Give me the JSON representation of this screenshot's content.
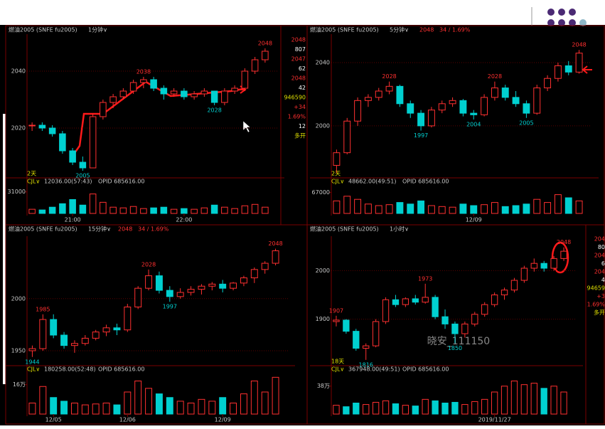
{
  "chart_data": [
    {
      "type": "candlestick",
      "title": "燃油2005 (SNFE fu2005)",
      "period": "1分钟∨",
      "days": "2天",
      "indicator": "CJL∨",
      "indicator_value": "12036.00(57:43)",
      "opid": "OPID 685616.00",
      "up_color": "#ff3030",
      "down_color": "#00d0d0",
      "ylim": [
        2003,
        2053
      ],
      "yticks": [
        2020,
        2040
      ],
      "volume_ylim": [
        0,
        45000
      ],
      "volume_yticks": [
        31000
      ],
      "xticks": [
        {
          "value": 4,
          "label": "21:00"
        },
        {
          "value": 15,
          "label": "22:00"
        }
      ],
      "candles": [
        [
          2021,
          2022,
          2019,
          2021
        ],
        [
          2021,
          2022,
          2019,
          2020
        ],
        [
          2020,
          2021,
          2017,
          2018
        ],
        [
          2018,
          2019,
          2011,
          2012
        ],
        [
          2012,
          2013,
          2007,
          2008
        ],
        [
          2008,
          2010,
          2005,
          2006
        ],
        [
          2006,
          2025,
          2006,
          2024
        ],
        [
          2024,
          2030,
          2023,
          2029
        ],
        [
          2029,
          2032,
          2027,
          2031
        ],
        [
          2031,
          2034,
          2030,
          2033
        ],
        [
          2033,
          2037,
          2032,
          2036
        ],
        [
          2036,
          2038,
          2034,
          2037
        ],
        [
          2037,
          2038,
          2033,
          2034
        ],
        [
          2034,
          2035,
          2030,
          2032
        ],
        [
          2032,
          2034,
          2031,
          2033
        ],
        [
          2033,
          2034,
          2030,
          2031
        ],
        [
          2031,
          2033,
          2030,
          2032
        ],
        [
          2032,
          2034,
          2031,
          2033
        ],
        [
          2033,
          2033,
          2028,
          2029
        ],
        [
          2029,
          2034,
          2028,
          2033
        ],
        [
          2033,
          2035,
          2032,
          2034
        ],
        [
          2034,
          2041,
          2033,
          2040
        ],
        [
          2040,
          2045,
          2039,
          2044
        ],
        [
          2044,
          2048,
          2043,
          2047
        ]
      ],
      "volume": [
        6000,
        5000,
        9000,
        14000,
        20000,
        12000,
        28000,
        16000,
        9000,
        8000,
        10000,
        7000,
        8000,
        9000,
        6000,
        7000,
        6000,
        8000,
        12000,
        9000,
        7000,
        11000,
        13000,
        9000
      ],
      "annotations": [
        {
          "index": 23,
          "value": 2048
        },
        {
          "index": 11,
          "value": 2038
        },
        {
          "index": 18,
          "value": 2028
        },
        {
          "index": 5,
          "value": 2005
        }
      ]
    },
    {
      "type": "candlestick",
      "title": "燃油2005 (SNFE fu2005)",
      "period": "5分钟∨",
      "last": "2048",
      "change": "34 / 1.69%",
      "days": "2天",
      "indicator": "CJL∨",
      "indicator_value": "48662.00(49:51)",
      "opid": "OPID 685616.00",
      "up_color": "#ff3030",
      "down_color": "#00d0d0",
      "ylim": [
        1968,
        2058
      ],
      "yticks": [
        2000,
        2040
      ],
      "volume_ylim": [
        0,
        100000
      ],
      "volume_yticks": [
        67000
      ],
      "xticks": [
        {
          "value": 13,
          "label": "12/09"
        }
      ],
      "candles": [
        [
          1975,
          1985,
          1970,
          1983
        ],
        [
          1983,
          2005,
          1982,
          2003
        ],
        [
          2003,
          2018,
          2000,
          2016
        ],
        [
          2016,
          2020,
          2012,
          2018
        ],
        [
          2018,
          2024,
          2016,
          2022
        ],
        [
          2022,
          2028,
          2020,
          2025
        ],
        [
          2025,
          2026,
          2012,
          2014
        ],
        [
          2014,
          2016,
          2005,
          2008
        ],
        [
          2008,
          2010,
          1997,
          2000
        ],
        [
          2000,
          2012,
          1999,
          2010
        ],
        [
          2010,
          2016,
          2008,
          2014
        ],
        [
          2014,
          2018,
          2012,
          2016
        ],
        [
          2016,
          2017,
          2006,
          2008
        ],
        [
          2008,
          2010,
          2004,
          2007
        ],
        [
          2007,
          2020,
          2006,
          2018
        ],
        [
          2018,
          2028,
          2016,
          2024
        ],
        [
          2024,
          2026,
          2016,
          2018
        ],
        [
          2018,
          2022,
          2012,
          2014
        ],
        [
          2014,
          2016,
          2005,
          2008
        ],
        [
          2008,
          2026,
          2007,
          2024
        ],
        [
          2024,
          2032,
          2022,
          2030
        ],
        [
          2030,
          2040,
          2028,
          2038
        ],
        [
          2038,
          2041,
          2032,
          2034
        ],
        [
          2034,
          2048,
          2033,
          2046
        ]
      ],
      "volume": [
        40000,
        55000,
        45000,
        30000,
        25000,
        28000,
        35000,
        30000,
        40000,
        25000,
        22000,
        20000,
        30000,
        25000,
        28000,
        35000,
        22000,
        25000,
        30000,
        45000,
        35000,
        60000,
        50000,
        40000
      ],
      "annotations": [
        {
          "index": 23,
          "value": 2048
        },
        {
          "index": 5,
          "value": 2028
        },
        {
          "index": 15,
          "value": 2028
        },
        {
          "index": 8,
          "value": 1997
        },
        {
          "index": 13,
          "value": 2004
        },
        {
          "index": 18,
          "value": 2005
        }
      ]
    },
    {
      "type": "candlestick",
      "title": "燃油2005 (SNFE fu2005)",
      "period": "15分钟∨",
      "last": "2048",
      "change": "34 / 1.69%",
      "indicator": "CJL∨",
      "indicator_value": "180258.00(52:48)",
      "opid": "OPID 685616.00",
      "up_color": "#ff3030",
      "down_color": "#00d0d0",
      "ylim": [
        1937,
        2060
      ],
      "yticks": [
        1950,
        2000
      ],
      "volume_ylim": [
        0,
        240000
      ],
      "volume_yticks": [
        {
          "value": 160000,
          "label": "16万"
        }
      ],
      "xticks": [
        {
          "value": 2,
          "label": "12/05"
        },
        {
          "value": 9,
          "label": "12/06"
        },
        {
          "value": 18,
          "label": "12/09"
        }
      ],
      "candles": [
        [
          1950,
          1955,
          1944,
          1952
        ],
        [
          1952,
          1985,
          1950,
          1980
        ],
        [
          1980,
          1985,
          1962,
          1965
        ],
        [
          1965,
          1968,
          1952,
          1955
        ],
        [
          1955,
          1960,
          1948,
          1957
        ],
        [
          1957,
          1965,
          1955,
          1962
        ],
        [
          1962,
          1970,
          1960,
          1968
        ],
        [
          1968,
          1975,
          1964,
          1972
        ],
        [
          1972,
          1976,
          1965,
          1970
        ],
        [
          1970,
          1995,
          1968,
          1992
        ],
        [
          1992,
          2012,
          1990,
          2010
        ],
        [
          2010,
          2028,
          2008,
          2022
        ],
        [
          2022,
          2026,
          2005,
          2008
        ],
        [
          2008,
          2012,
          1997,
          2002
        ],
        [
          2002,
          2010,
          2000,
          2006
        ],
        [
          2006,
          2012,
          2003,
          2009
        ],
        [
          2009,
          2014,
          2004,
          2012
        ],
        [
          2012,
          2016,
          2008,
          2014
        ],
        [
          2014,
          2018,
          2006,
          2010
        ],
        [
          2010,
          2016,
          2008,
          2015
        ],
        [
          2015,
          2022,
          2012,
          2020
        ],
        [
          2020,
          2030,
          2015,
          2028
        ],
        [
          2028,
          2036,
          2024,
          2034
        ],
        [
          2034,
          2048,
          2032,
          2046
        ]
      ],
      "volume": [
        60000,
        150000,
        90000,
        70000,
        60000,
        50000,
        55000,
        60000,
        50000,
        120000,
        180000,
        140000,
        110000,
        90000,
        70000,
        60000,
        80000,
        70000,
        90000,
        60000,
        110000,
        180000,
        120000,
        200000
      ],
      "annotations": [
        {
          "index": 23,
          "value": 2048
        },
        {
          "index": 11,
          "value": 2028
        },
        {
          "index": 1,
          "value": 1985
        },
        {
          "index": 13,
          "value": 1997
        },
        {
          "index": 0,
          "value": 1944
        }
      ]
    },
    {
      "type": "candlestick",
      "title": "燃油2005 (SNFE fu2005)",
      "period": "1小时∨",
      "days": "18天",
      "indicator": "CJL∨",
      "indicator_value": "367948.00(49:51)",
      "opid": "OPID 685616.00",
      "up_color": "#ff3030",
      "down_color": "#00d0d0",
      "ylim": [
        1807,
        2071
      ],
      "yticks": [
        1900,
        2000
      ],
      "volume_ylim": [
        0,
        600000
      ],
      "volume_yticks": [
        {
          "value": 380000,
          "label": "38万"
        }
      ],
      "xticks": [
        {
          "value": 16,
          "label": "2019/11/27"
        }
      ],
      "candles": [
        [
          1895,
          1907,
          1885,
          1898
        ],
        [
          1898,
          1900,
          1870,
          1875
        ],
        [
          1875,
          1880,
          1835,
          1840
        ],
        [
          1840,
          1850,
          1816,
          1845
        ],
        [
          1845,
          1900,
          1842,
          1895
        ],
        [
          1895,
          1945,
          1890,
          1940
        ],
        [
          1940,
          1950,
          1925,
          1930
        ],
        [
          1930,
          1945,
          1925,
          1942
        ],
        [
          1942,
          1950,
          1930,
          1935
        ],
        [
          1935,
          1973,
          1932,
          1945
        ],
        [
          1945,
          1950,
          1900,
          1905
        ],
        [
          1905,
          1920,
          1880,
          1890
        ],
        [
          1890,
          1895,
          1850,
          1870
        ],
        [
          1870,
          1895,
          1862,
          1890
        ],
        [
          1890,
          1915,
          1885,
          1910
        ],
        [
          1910,
          1935,
          1905,
          1930
        ],
        [
          1930,
          1955,
          1925,
          1950
        ],
        [
          1950,
          1965,
          1940,
          1960
        ],
        [
          1960,
          1985,
          1955,
          1980
        ],
        [
          1980,
          2010,
          1975,
          2005
        ],
        [
          2005,
          2025,
          1998,
          2015
        ],
        [
          2015,
          2020,
          1998,
          2005
        ],
        [
          2005,
          2030,
          2000,
          2025
        ],
        [
          2025,
          2048,
          2020,
          2040
        ]
      ],
      "volume": [
        120000,
        100000,
        150000,
        130000,
        160000,
        180000,
        140000,
        120000,
        110000,
        200000,
        180000,
        150000,
        160000,
        130000,
        170000,
        200000,
        300000,
        380000,
        450000,
        400000,
        420000,
        350000,
        380000,
        300000
      ],
      "annotations": [
        {
          "index": 23,
          "value": 2048
        },
        {
          "index": 9,
          "value": 1973
        },
        {
          "index": 0,
          "value": 1907
        },
        {
          "index": 3,
          "value": 1816
        },
        {
          "index": 12,
          "value": 1850
        }
      ]
    }
  ],
  "side_panels": [
    {
      "lines": [
        {
          "text": "2048",
          "color": "#ff3030"
        },
        {
          "text": "807",
          "color": "#ffffff"
        },
        {
          "text": "2047",
          "color": "#ff3030"
        },
        {
          "text": "62",
          "color": "#ffffff"
        },
        {
          "text": "2048",
          "color": "#ff3030"
        },
        {
          "text": "42",
          "color": "#ffffff"
        },
        {
          "text": "946590",
          "color": "#e0e000"
        },
        {
          "text": "+34",
          "color": "#ff3030"
        },
        {
          "text": "1.69%",
          "color": "#ff3030"
        },
        {
          "text": "12",
          "color": "#ffffff"
        },
        {
          "text": "多开",
          "color": "#e0e000"
        }
      ]
    },
    {
      "lines": [
        {
          "text": "204",
          "color": "#ff3030"
        },
        {
          "text": "80",
          "color": "#ffffff"
        },
        {
          "text": "204",
          "color": "#ff3030"
        },
        {
          "text": "6",
          "color": "#ffffff"
        },
        {
          "text": "204",
          "color": "#ff3030"
        },
        {
          "text": "4",
          "color": "#ffffff"
        },
        {
          "text": "94659",
          "color": "#e0e000"
        },
        {
          "text": "+3",
          "color": "#ff3030"
        },
        {
          "text": "1.69%",
          "color": "#ff3030"
        },
        {
          "text": "多开",
          "color": "#e0e000"
        }
      ]
    }
  ],
  "watermark": "晓安_111150"
}
